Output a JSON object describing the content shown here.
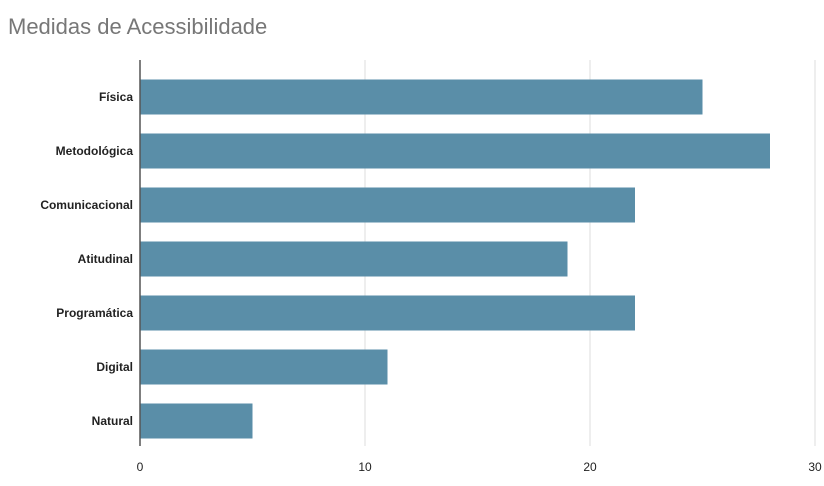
{
  "chart_data": {
    "type": "bar",
    "orientation": "horizontal",
    "title": "Medidas de Acessibilidade",
    "categories": [
      "Física",
      "Metodológica",
      "Comunicacional",
      "Atitudinal",
      "Programática",
      "Digital",
      "Natural"
    ],
    "values": [
      25,
      28,
      22,
      19,
      22,
      11,
      5
    ],
    "xlabel": "",
    "ylabel": "",
    "xlim": [
      0,
      30
    ],
    "xticks": [
      "0",
      "10",
      "20",
      "30"
    ],
    "grid": true,
    "legend": "none",
    "bar_color": "#5a8ea8",
    "grid_color": "#dddddd",
    "axis_color": "#555555"
  }
}
